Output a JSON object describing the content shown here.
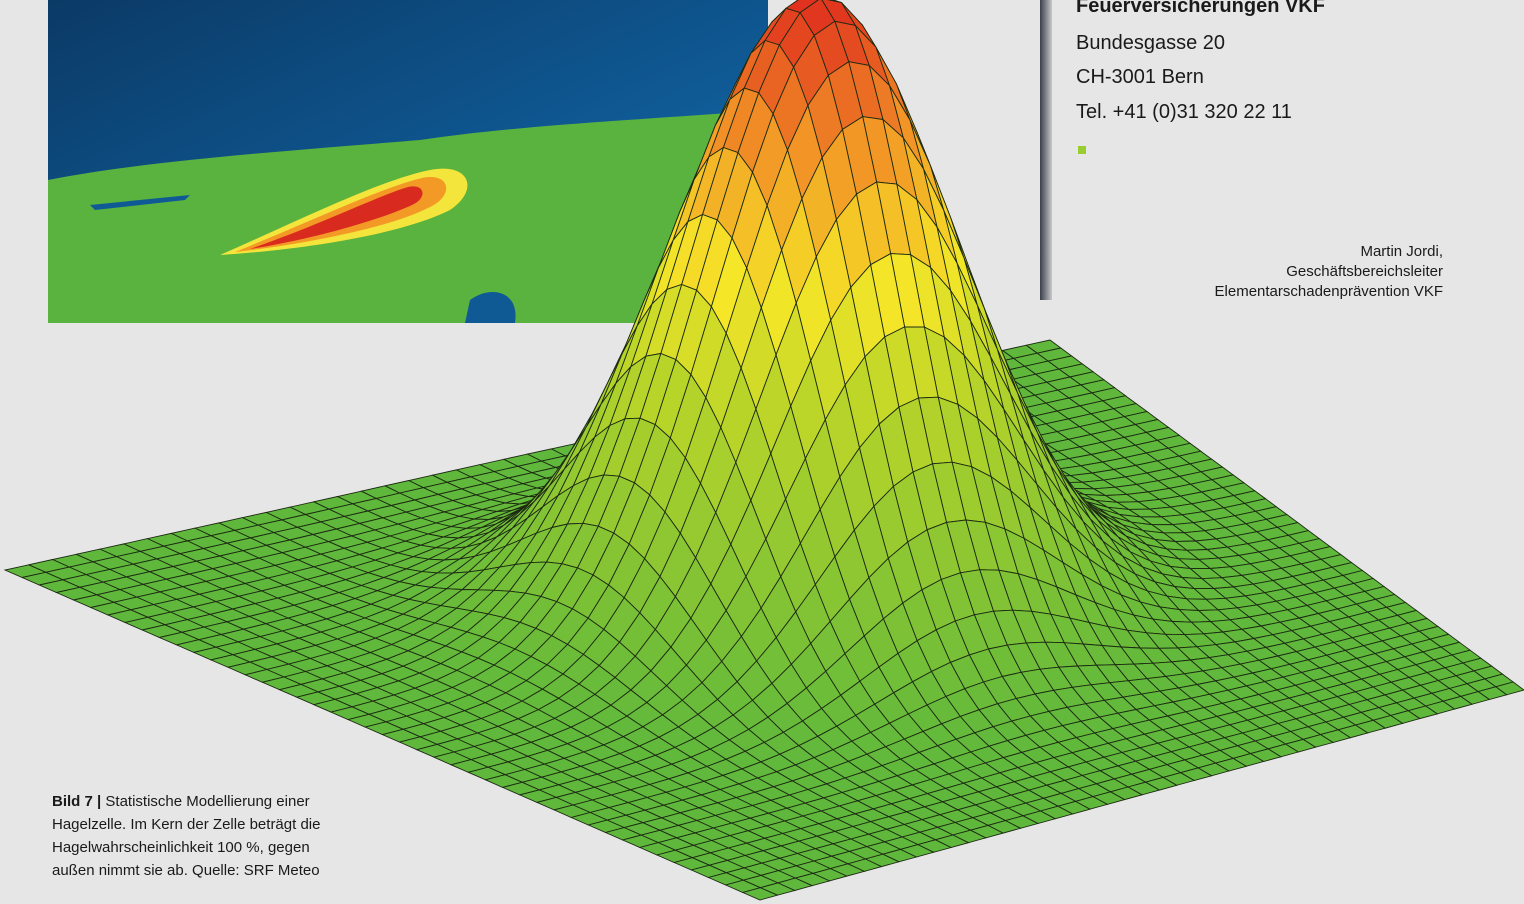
{
  "header": {
    "organization": "Feuerversicherungen VKF",
    "address": [
      "Bundesgasse 20",
      "CH-3001 Bern"
    ],
    "phone": "Tel. +41 (0)31 320 22 11"
  },
  "author": {
    "name": "Martin Jordi,",
    "role": [
      "Geschäftsbereichsleiter",
      "Elementarschadenprävention VKF"
    ]
  },
  "caption": {
    "label": "Bild 7 |",
    "lines": [
      "Statistische Modellierung einer",
      "Hagelzelle. Im Kern der Zelle beträgt die",
      "Hagelwahrscheinlichkeit 100 %, gegen",
      "außen nimmt sie ab. Quelle: SRF Meteo"
    ]
  }
}
